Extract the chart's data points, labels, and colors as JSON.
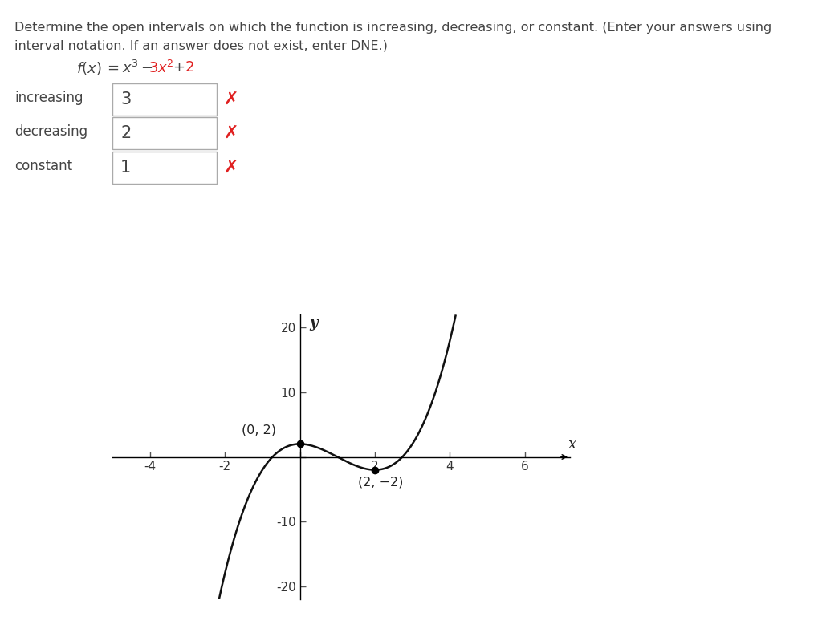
{
  "title_line1": "Determine the open intervals on which the function is increasing, decreasing, or constant. (Enter your answers using",
  "title_line2": "interval notation. If an answer does not exist, enter DNE.)",
  "rows": [
    {
      "label": "increasing",
      "value": "3"
    },
    {
      "label": "decreasing",
      "value": "2"
    },
    {
      "label": "constant",
      "value": "1"
    }
  ],
  "x_cross_color": "#e02020",
  "red_color": "#e02020",
  "box_border_color": "#aaaaaa",
  "background_color": "#ffffff",
  "text_color": "#444444",
  "graph_xlim": [
    -5,
    7.2
  ],
  "graph_ylim": [
    -22,
    22
  ],
  "graph_xticks": [
    -4,
    -2,
    0,
    2,
    4,
    6
  ],
  "graph_yticks": [
    -20,
    -10,
    0,
    10,
    20
  ],
  "point1": [
    0,
    2
  ],
  "point2": [
    2,
    -2
  ],
  "point1_label": "(0, 2)",
  "point2_label": "(2, −2)",
  "xlabel": "x",
  "ylabel": "y",
  "curve_color": "#111111",
  "curve_linewidth": 1.8,
  "tick_label_color": "#333333",
  "tick_fontsize": 11,
  "annotation_fontsize": 11.5,
  "title_fontsize": 11.5,
  "label_fontsize": 12,
  "value_fontsize": 15,
  "func_fontsize": 13
}
